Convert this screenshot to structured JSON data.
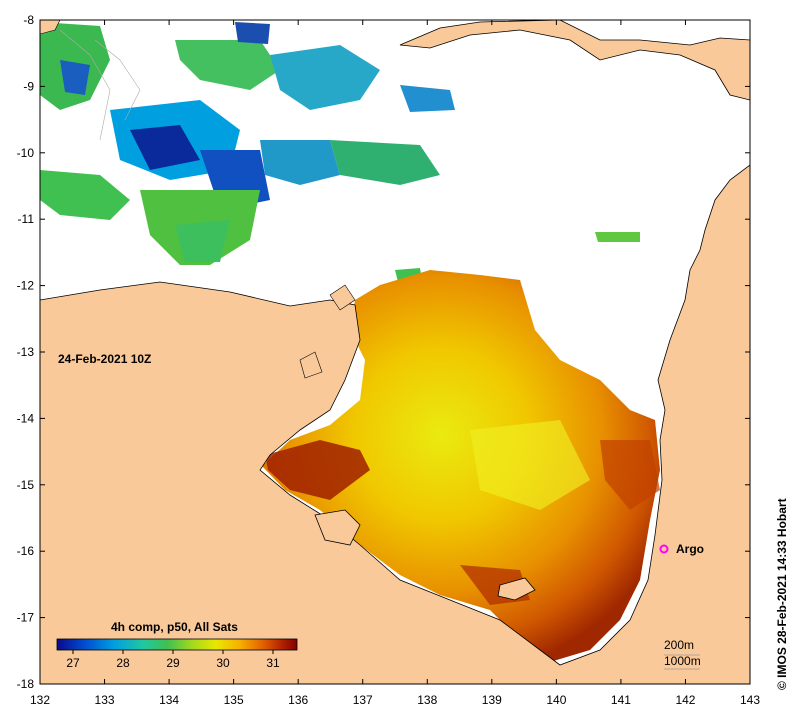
{
  "map": {
    "datetime_label": "24-Feb-2021 10Z",
    "credit": "© IMOS 28-Feb-2021 14:33 Hobart",
    "x_ticks": [
      "132",
      "133",
      "134",
      "135",
      "136",
      "137",
      "138",
      "139",
      "140",
      "141",
      "142",
      "143"
    ],
    "y_ticks": [
      "-8",
      "-9",
      "-10",
      "-11",
      "-12",
      "-13",
      "-14",
      "-15",
      "-16",
      "-17",
      "-18"
    ],
    "legend": {
      "title": "4h comp, p50, All Sats",
      "tick_labels": [
        "27",
        "28",
        "29",
        "30",
        "31"
      ],
      "colors": [
        "#0a0a8c",
        "#0050d0",
        "#00a0e0",
        "#20c8a0",
        "#40c050",
        "#a0d820",
        "#e8e800",
        "#f8b000",
        "#e06000",
        "#b02000",
        "#800000"
      ]
    },
    "contours": [
      "200m",
      "1000m"
    ],
    "markers": [
      {
        "label": "Argo",
        "color": "#ff00ff"
      }
    ],
    "colors": {
      "land": "#fac99a",
      "ocean_nodata": "#ffffff",
      "coast": "#000000"
    }
  }
}
